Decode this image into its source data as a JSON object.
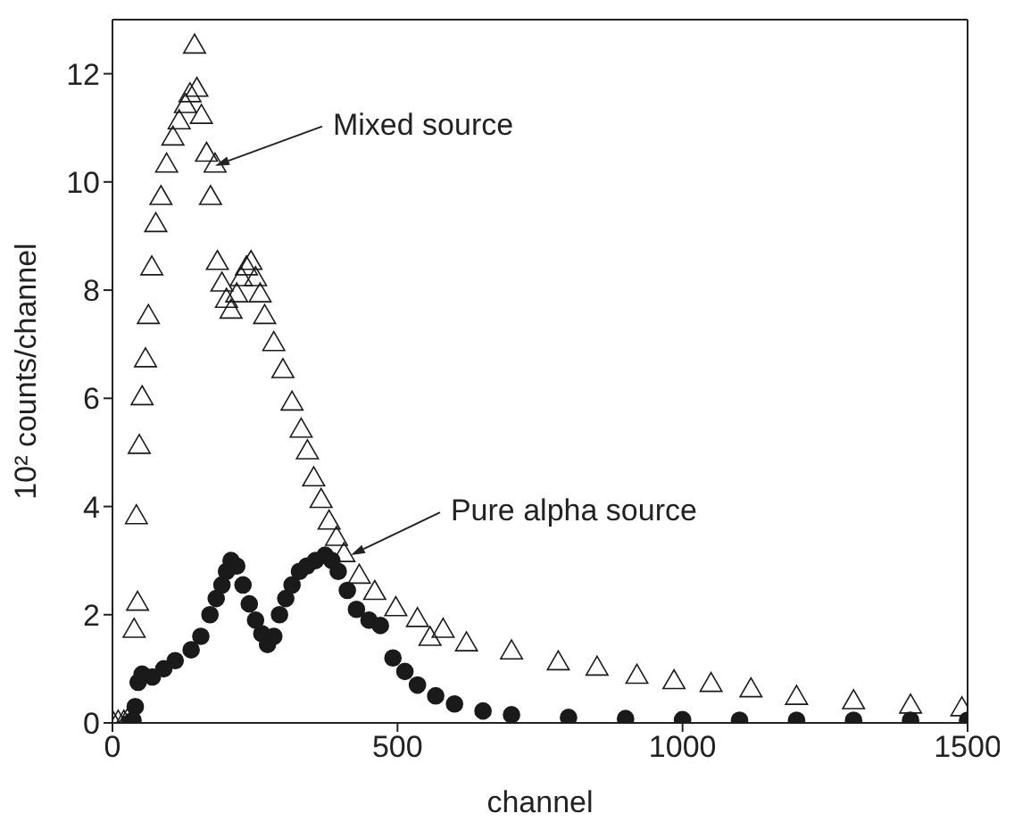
{
  "chart_data": {
    "type": "scatter",
    "xlabel": "channel",
    "ylabel": "10² counts/channel",
    "xlim": [
      0,
      1500
    ],
    "xticks": [
      0,
      500,
      1000,
      1500
    ],
    "ylim": [
      0,
      13
    ],
    "yticks": [
      0,
      2,
      4,
      6,
      8,
      10,
      12
    ],
    "grid": false,
    "legend": false,
    "series": [
      {
        "color": "#1a1a1a",
        "marker": "triangle",
        "x": [
          0,
          10,
          20,
          30,
          38,
          42,
          44,
          47,
          52,
          58,
          63,
          69,
          76,
          85,
          95,
          106,
          117,
          128,
          136,
          144,
          148,
          156,
          165,
          172,
          180,
          184,
          192,
          200,
          208,
          218,
          226,
          235,
          243,
          251,
          259,
          267,
          283,
          299,
          315,
          331,
          342,
          353,
          366,
          380,
          393,
          406,
          433,
          460,
          497,
          535,
          557,
          580,
          621,
          700,
          782,
          850,
          920,
          985,
          1050,
          1120,
          1200,
          1300,
          1400,
          1490
        ],
        "values": [
          0,
          0,
          0,
          0.1,
          1.7,
          3.8,
          2.2,
          5.1,
          6,
          6.7,
          7.5,
          8.4,
          9.2,
          9.7,
          10.3,
          10.8,
          11.1,
          11.4,
          11.6,
          12.5,
          11.7,
          11.2,
          10.5,
          9.7,
          10.3,
          8.5,
          8.1,
          7.8,
          7.6,
          7.9,
          8.2,
          8.4,
          8.5,
          8.2,
          7.9,
          7.5,
          7,
          6.5,
          5.9,
          5.4,
          5,
          4.5,
          4.1,
          3.7,
          3.4,
          3.1,
          2.7,
          2.4,
          2.1,
          1.9,
          1.55,
          1.7,
          1.45,
          1.3,
          1.1,
          1,
          0.85,
          0.75,
          0.7,
          0.6,
          0.46,
          0.38,
          0.3,
          0.25
        ]
      },
      {
        "color": "#1a1a1a",
        "marker": "circle",
        "x": [
          30,
          36,
          40,
          45,
          52,
          70,
          90,
          110,
          138,
          155,
          171,
          182,
          192,
          200,
          208,
          218,
          229,
          240,
          251,
          262,
          272,
          283,
          293,
          304,
          315,
          328,
          341,
          356,
          373,
          385,
          396,
          412,
          428,
          450,
          470,
          492,
          513,
          535,
          567,
          600,
          650,
          700,
          800,
          900,
          1000,
          1100,
          1200,
          1300,
          1400,
          1500
        ],
        "values": [
          0,
          0.05,
          0.3,
          0.75,
          0.9,
          0.85,
          1,
          1.15,
          1.35,
          1.6,
          2,
          2.3,
          2.55,
          2.8,
          3,
          2.9,
          2.55,
          2.2,
          1.9,
          1.65,
          1.45,
          1.6,
          2,
          2.3,
          2.55,
          2.8,
          2.9,
          3,
          3.1,
          3,
          2.8,
          2.45,
          2.1,
          1.9,
          1.8,
          1.2,
          0.95,
          0.7,
          0.5,
          0.35,
          0.22,
          0.15,
          0.1,
          0.08,
          0.06,
          0.05,
          0.05,
          0.05,
          0.05,
          0.05
        ]
      }
    ],
    "annotations": [
      {
        "text": "Mixed source",
        "x": 180,
        "y": 10.3
      },
      {
        "text": "Pure alpha source",
        "x": 418,
        "y": 3.1
      }
    ]
  }
}
